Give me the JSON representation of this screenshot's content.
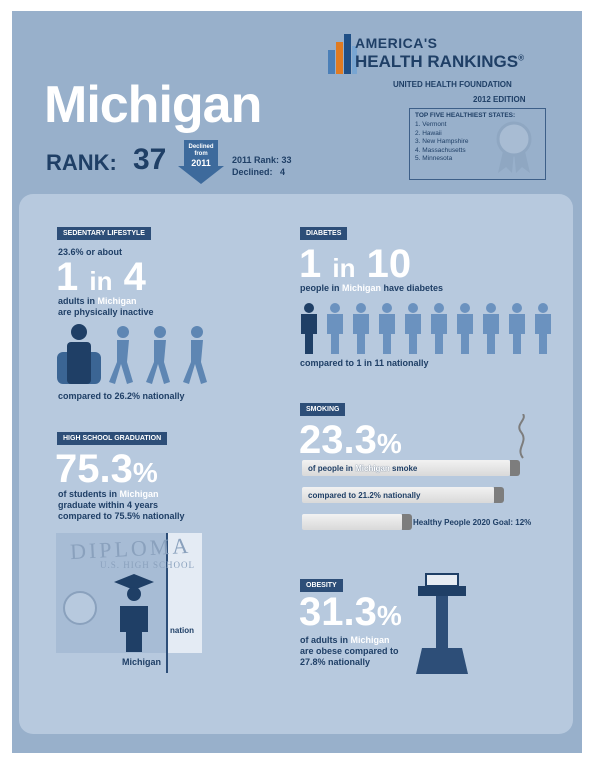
{
  "logo": {
    "line1": "AMERICA'S",
    "line2": "HEALTH RANKINGS",
    "reg": "®",
    "sub": "UNITED HEALTH FOUNDATION",
    "edition": "2012 EDITION"
  },
  "state": "Michigan",
  "rank": {
    "label": "RANK:",
    "value": "37",
    "declined_line1": "Declined",
    "declined_line2": "from",
    "declined_line3": "2011",
    "prev_rank_label": "2011 Rank:",
    "prev_rank": "33",
    "declined_label": "Declined:",
    "declined_by": "4"
  },
  "top5": {
    "title": "TOP FIVE HEALTHIEST STATES:",
    "states": [
      "1. Vermont",
      "2. Hawaii",
      "3. New Hampshire",
      "4. Massachusetts",
      "5. Minnesota"
    ]
  },
  "sedentary": {
    "tag": "SEDENTARY LIFESTYLE",
    "pre": "23.6% or about",
    "ratio_a": "1",
    "ratio_in": "in",
    "ratio_b": "4",
    "line1_a": "adults in ",
    "line1_b": "Michigan",
    "line2": "are physically inactive",
    "compare": "compared to 26.2% nationally"
  },
  "diabetes": {
    "tag": "DIABETES",
    "ratio_a": "1",
    "ratio_in": "in",
    "ratio_b": "10",
    "line_a": "people in ",
    "line_b": "Michigan",
    "line_c": " have diabetes",
    "compare": "compared to 1 in 11 nationally"
  },
  "smoking": {
    "tag": "SMOKING",
    "value": "23.3",
    "pct": "%",
    "bar1_a": "of people in ",
    "bar1_b": "Michigan",
    "bar1_c": " smoke",
    "bar2": "compared to 21.2% nationally",
    "bar3": "Healthy People 2020 Goal: 12%"
  },
  "graduation": {
    "tag": "HIGH SCHOOL GRADUATION",
    "value": "75.3",
    "pct": "%",
    "line1_a": "of students in ",
    "line1_b": "Michigan",
    "line2": "graduate within 4 years",
    "line3": "compared to 75.5% nationally",
    "diploma": "DIPLOMA",
    "diploma_sub": "U.S. HIGH SCHOOL",
    "label_state": "Michigan",
    "label_nation": "nation"
  },
  "obesity": {
    "tag": "OBESITY",
    "value": "31.3",
    "pct": "%",
    "line1_a": "of adults in ",
    "line1_b": "Michigan",
    "line2": "are obese compared to",
    "line3": "27.8% nationally"
  }
}
